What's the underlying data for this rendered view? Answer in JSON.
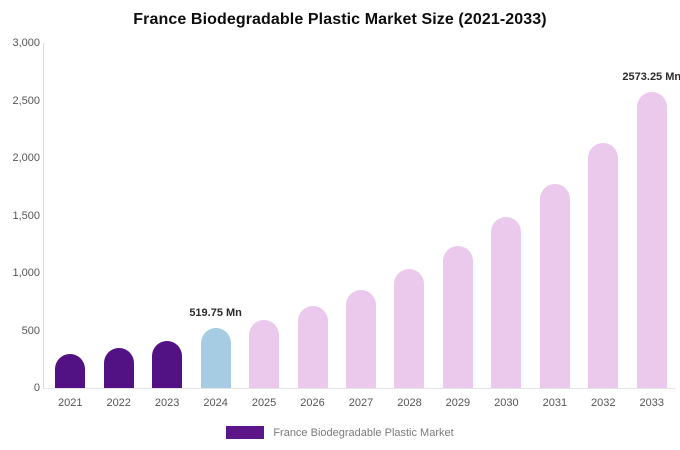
{
  "chart_data": {
    "type": "bar",
    "title": "France Biodegradable Plastic Market Size (2021-2033)",
    "categories": [
      "2021",
      "2022",
      "2023",
      "2024",
      "2025",
      "2026",
      "2027",
      "2028",
      "2029",
      "2030",
      "2031",
      "2032",
      "2033"
    ],
    "values": [
      300,
      345,
      405,
      519.75,
      590,
      710,
      855,
      1035,
      1235,
      1485,
      1770,
      2130,
      2573.25
    ],
    "bar_color_keys": [
      "dark",
      "dark",
      "dark",
      "highlight",
      "light",
      "light",
      "light",
      "light",
      "light",
      "light",
      "light",
      "light",
      "light"
    ],
    "data_labels": [
      null,
      null,
      null,
      "519.75 Mn",
      null,
      null,
      null,
      null,
      null,
      null,
      null,
      null,
      "2573.25 Mn"
    ],
    "xlabel": "",
    "ylabel": "",
    "ylim": [
      0,
      3000
    ],
    "y_ticks": [
      "0",
      "500",
      "1,000",
      "1,500",
      "2,000",
      "2,500",
      "3,000"
    ],
    "grid": "off",
    "legend_position": "bottom",
    "legend": [
      "France Biodegradable Plastic Market"
    ],
    "colors": {
      "dark": "#531283",
      "highlight": "#a6cce4",
      "light": "#ebc9ec",
      "legend_swatch": "#5c1689",
      "axis_line": "#d9d9d9"
    }
  }
}
